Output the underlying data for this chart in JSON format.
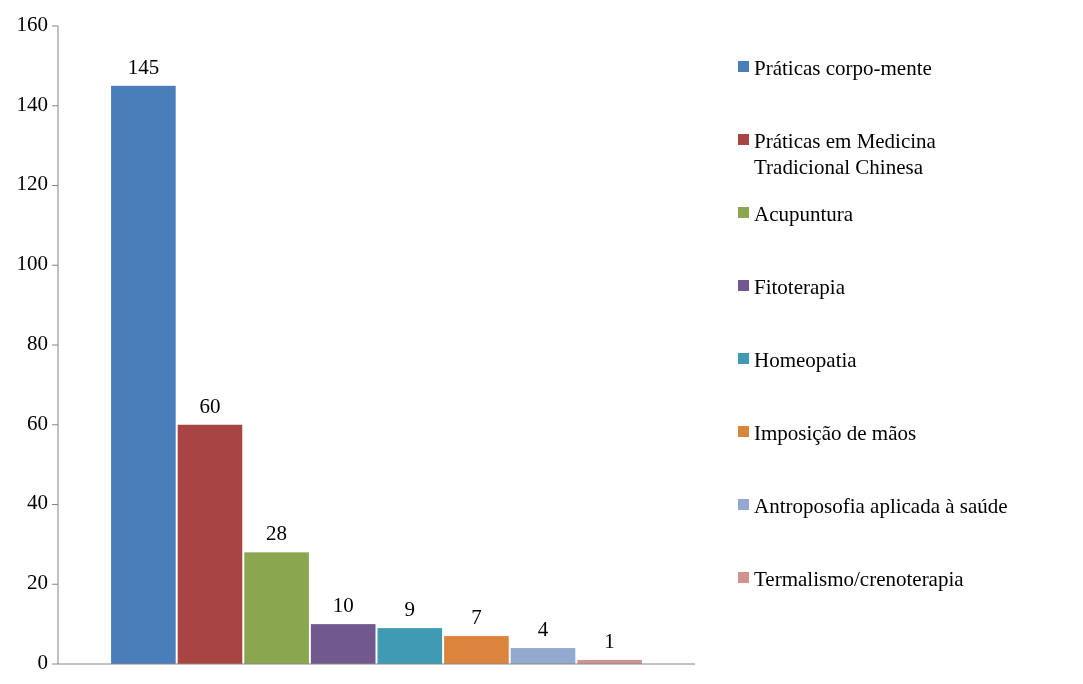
{
  "chart_data": {
    "type": "bar",
    "categories": [
      null
    ],
    "series": [
      {
        "name": "Práticas corpo-mente",
        "color": "#4a7ebb",
        "values": [
          145
        ]
      },
      {
        "name": "Práticas em Medicina Tradicional Chinesa",
        "color": "#a84542",
        "values": [
          60
        ]
      },
      {
        "name": "Acupuntura",
        "color": "#8aa64e",
        "values": [
          28
        ]
      },
      {
        "name": "Fitoterapia",
        "color": "#71588f",
        "values": [
          10
        ]
      },
      {
        "name": "Homeopatia",
        "color": "#3f9bb3",
        "values": [
          9
        ]
      },
      {
        "name": "Imposição de mãos",
        "color": "#db843d",
        "values": [
          7
        ]
      },
      {
        "name": "Antroposofia aplicada à saúde",
        "color": "#93a9cf",
        "values": [
          4
        ]
      },
      {
        "name": "Termalismo/crenoterapia",
        "color": "#d19392",
        "values": [
          1
        ]
      }
    ],
    "ylim": [
      0,
      160
    ],
    "yticks": [
      0,
      20,
      40,
      60,
      80,
      100,
      120,
      140,
      160
    ],
    "data_labels": true,
    "legend": "right",
    "grid": false
  }
}
